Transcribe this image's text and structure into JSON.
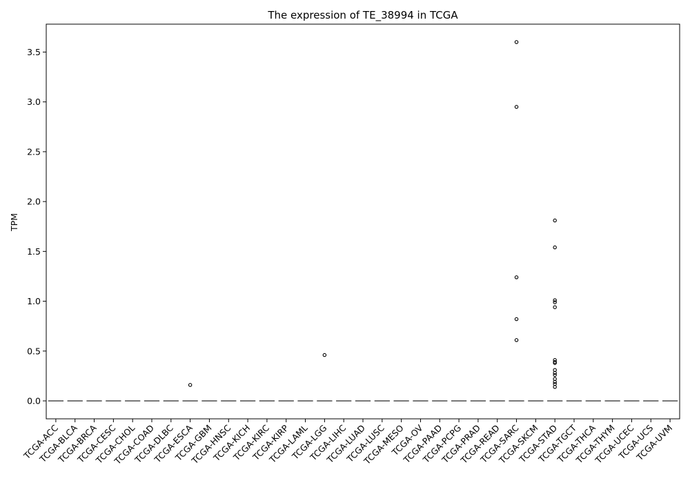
{
  "chart_data": {
    "type": "box",
    "title": "The expression of TE_38994 in TCGA",
    "xlabel": "",
    "ylabel": "TPM",
    "ylim": [
      -0.18,
      3.78
    ],
    "yticks": [
      "0.0",
      "0.5",
      "1.0",
      "1.5",
      "2.0",
      "2.5",
      "3.0",
      "3.5"
    ],
    "grid": false,
    "legend": "none",
    "colors": {
      "box": "#4a4a4a",
      "outlier": "#000000",
      "axis": "#000000"
    },
    "categories": [
      "TCGA-ACC",
      "TCGA-BLCA",
      "TCGA-BRCA",
      "TCGA-CESC",
      "TCGA-CHOL",
      "TCGA-COAD",
      "TCGA-DLBC",
      "TCGA-ESCA",
      "TCGA-GBM",
      "TCGA-HNSC",
      "TCGA-KICH",
      "TCGA-KIRC",
      "TCGA-KIRP",
      "TCGA-LAML",
      "TCGA-LGG",
      "TCGA-LIHC",
      "TCGA-LUAD",
      "TCGA-LUSC",
      "TCGA-MESO",
      "TCGA-OV",
      "TCGA-PAAD",
      "TCGA-PCPG",
      "TCGA-PRAD",
      "TCGA-READ",
      "TCGA-SARC",
      "TCGA-SKCM",
      "TCGA-STAD",
      "TCGA-TGCT",
      "TCGA-THCA",
      "TCGA-THYM",
      "TCGA-UCEC",
      "TCGA-UCS",
      "TCGA-UVM"
    ],
    "median": [
      0,
      0,
      0,
      0,
      0,
      0,
      0,
      0,
      0,
      0,
      0,
      0,
      0,
      0,
      0,
      0,
      0,
      0,
      0,
      0,
      0,
      0,
      0,
      0,
      0,
      0,
      0,
      0,
      0,
      0,
      0,
      0,
      0
    ],
    "outliers": [
      {
        "category": "TCGA-ESCA",
        "values": [
          0.16
        ]
      },
      {
        "category": "TCGA-LGG",
        "values": [
          0.46
        ]
      },
      {
        "category": "TCGA-SARC",
        "values": [
          3.6,
          2.95,
          1.24,
          0.82,
          0.61
        ]
      },
      {
        "category": "TCGA-STAD",
        "values": [
          1.81,
          1.54,
          1.01,
          0.99,
          0.94,
          0.41,
          0.39,
          0.38,
          0.31,
          0.28,
          0.26,
          0.22,
          0.19,
          0.17,
          0.14
        ]
      }
    ]
  }
}
